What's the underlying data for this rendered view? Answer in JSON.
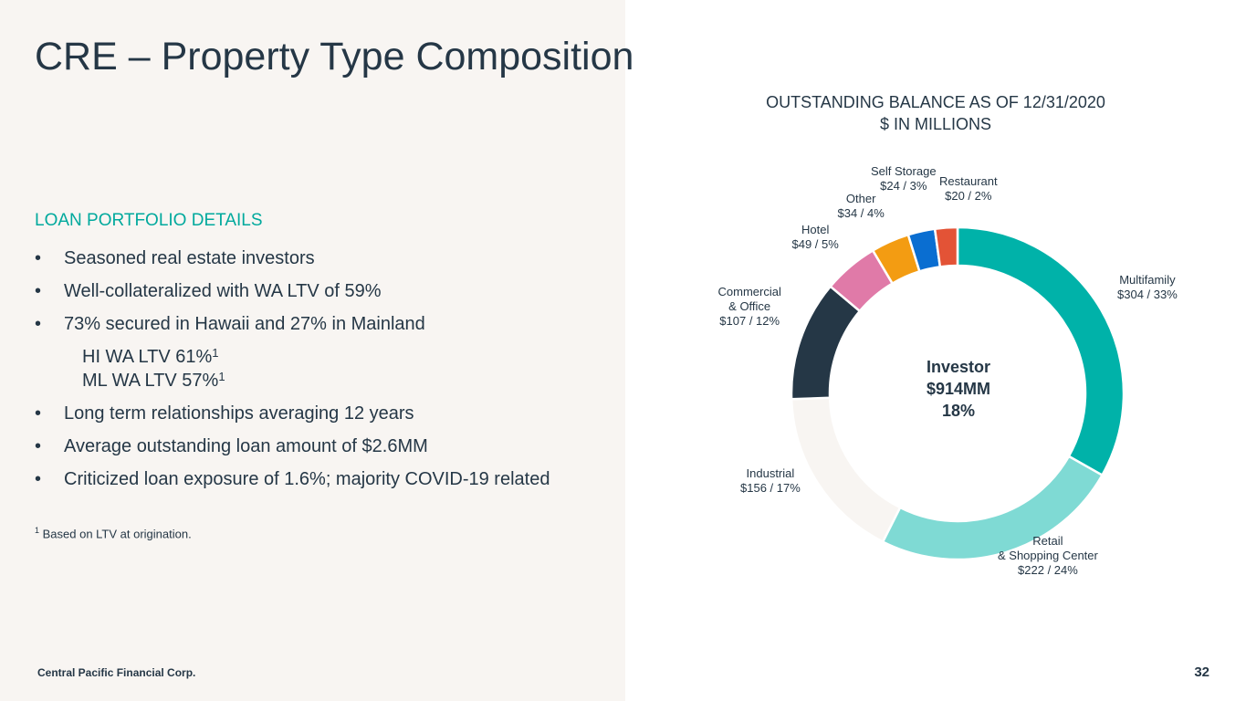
{
  "title": "CRE – Property Type Composition",
  "section_heading": "LOAN PORTFOLIO DETAILS",
  "bullets": [
    "Seasoned real estate investors",
    "Well-collateralized with WA LTV of 59%",
    "73% secured in Hawaii and 27% in Mainland",
    "Long term relationships averaging 12 years",
    "Average outstanding loan amount of $2.6MM",
    "Criticized loan exposure of 1.6%; majority COVID-19 related"
  ],
  "sub_bullets": [
    {
      "text": "HI WA LTV 61%",
      "sup": "1"
    },
    {
      "text": "ML WA LTV 57%",
      "sup": "1"
    }
  ],
  "footnote": {
    "marker": "1",
    "text": " Based on LTV at origination."
  },
  "footer": {
    "company": "Central Pacific Financial Corp.",
    "page": "32"
  },
  "chart_data": {
    "type": "pie",
    "title": "OUTSTANDING BALANCE AS OF 12/31/2020",
    "subtitle": "$ IN MILLIONS",
    "center": {
      "line1": "Investor",
      "line2": "$914MM",
      "line3": "18%"
    },
    "slices": [
      {
        "name": "Multifamily",
        "label_lines": [
          "Multifamily",
          "$304 / 33%"
        ],
        "value": 304,
        "percent": 33,
        "color": "#00b2a9"
      },
      {
        "name": "Retail & Shopping Center",
        "label_lines": [
          "Retail",
          "& Shopping Center",
          "$222 / 24%"
        ],
        "value": 222,
        "percent": 24,
        "color": "#7fdad4"
      },
      {
        "name": "Industrial",
        "label_lines": [
          "Industrial",
          "$156 / 17%"
        ],
        "value": 156,
        "percent": 17,
        "color": "#f8f5f2"
      },
      {
        "name": "Commercial & Office",
        "label_lines": [
          "Commercial",
          "& Office",
          "$107 / 12%"
        ],
        "value": 107,
        "percent": 12,
        "color": "#253746"
      },
      {
        "name": "Hotel",
        "label_lines": [
          "Hotel",
          "$49 / 5%"
        ],
        "value": 49,
        "percent": 5,
        "color": "#e07aa8"
      },
      {
        "name": "Other",
        "label_lines": [
          "Other",
          "$34 / 4%"
        ],
        "value": 34,
        "percent": 4,
        "color": "#f39c12"
      },
      {
        "name": "Self Storage",
        "label_lines": [
          "Self Storage",
          "$24 / 3%"
        ],
        "value": 24,
        "percent": 3,
        "color": "#0a6ed1"
      },
      {
        "name": "Restaurant",
        "label_lines": [
          "Restaurant",
          "$20 / 2%"
        ],
        "value": 20,
        "percent": 2,
        "color": "#e35336"
      }
    ]
  }
}
